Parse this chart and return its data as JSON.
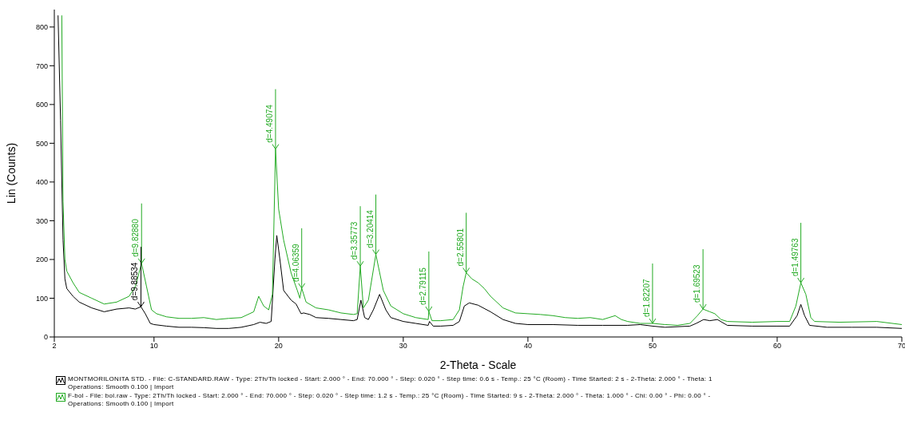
{
  "chart_data": {
    "type": "line",
    "xlabel": "2-Theta - Scale",
    "ylabel": "Lin (Counts)",
    "xlim": [
      2,
      70
    ],
    "xticks": [
      2,
      10,
      20,
      30,
      40,
      50,
      60,
      70
    ],
    "ylim": [
      0,
      845
    ],
    "yticks": [
      0,
      100,
      200,
      300,
      400,
      500,
      600,
      700,
      800
    ],
    "grid": false,
    "legend": "bottom",
    "marker": "none",
    "line_style": "solid",
    "series": [
      {
        "name": "MONTMORILONITA STD. - File: C-STANDARD.RAW - Type: 2Th/Th locked - Start: 2.000 ° - End: 70.000 ° - Step: 0.020 ° - Step time: 0.6 s - Temp.: 25 °C (Room) - Time Started: 2 s - 2-Theta: 2.000 ° - Theta: 1\nOperations: Smooth 0.100 | Import",
        "color": "#000000",
        "x": [
          2.3,
          2.5,
          2.7,
          2.85,
          3.0,
          3.5,
          4,
          5,
          6,
          7,
          8,
          8.5,
          8.95,
          9.3,
          9.7,
          10,
          11,
          12,
          13,
          14,
          15,
          16,
          17,
          18,
          18.5,
          19,
          19.4,
          19.7,
          19.85,
          20.1,
          20.4,
          21,
          21.4,
          21.8,
          22,
          22.5,
          23,
          24,
          25,
          26,
          26.3,
          26.6,
          26.9,
          27.2,
          27.6,
          28.1,
          28.6,
          29,
          30,
          31,
          32,
          32.1,
          32.4,
          33,
          34,
          34.5,
          34.9,
          35.3,
          36,
          37,
          38,
          39,
          40,
          42,
          44,
          46,
          48,
          49,
          50,
          51,
          53,
          53.5,
          54.1,
          54.6,
          55.2,
          56,
          58,
          60,
          61,
          61.6,
          61.9,
          62.2,
          62.6,
          64,
          66,
          68,
          70
        ],
        "values": [
          830,
          560,
          250,
          150,
          125,
          105,
          90,
          75,
          65,
          72,
          75,
          72,
          78,
          60,
          35,
          32,
          28,
          25,
          25,
          24,
          22,
          22,
          25,
          32,
          38,
          35,
          40,
          200,
          262,
          200,
          120,
          95,
          85,
          60,
          62,
          58,
          50,
          48,
          45,
          42,
          45,
          95,
          50,
          45,
          70,
          110,
          70,
          50,
          40,
          35,
          30,
          40,
          28,
          28,
          30,
          40,
          80,
          88,
          82,
          65,
          45,
          35,
          32,
          32,
          30,
          30,
          30,
          32,
          28,
          25,
          28,
          35,
          45,
          42,
          45,
          30,
          28,
          28,
          28,
          55,
          84,
          55,
          30,
          25,
          25,
          25,
          22
        ]
      },
      {
        "name": "F-bol - File: bol.raw - Type: 2Th/Th locked - Start: 2.000 ° - End: 70.000 ° - Step: 0.020 ° - Step time: 1.2 s - Temp.: 25 °C (Room) - Time Started: 9 s - 2-Theta: 2.000 ° - Theta: 1.000 ° - Chi: 0.00 ° - Phi: 0.00 ° -\nOperations: Smooth 0.100 | Import",
        "color": "#22aa22",
        "x": [
          2.6,
          2.7,
          2.85,
          3.0,
          3.5,
          4,
          5,
          6,
          7,
          8,
          8.5,
          9.0,
          9.4,
          9.8,
          10.2,
          11,
          12,
          13,
          14,
          15,
          16,
          17,
          18,
          18.4,
          18.8,
          19.2,
          19.5,
          19.75,
          20.0,
          20.4,
          21,
          21.5,
          21.7,
          21.85,
          22.2,
          23,
          24,
          25,
          26,
          26.3,
          26.55,
          26.8,
          27.2,
          27.8,
          28.4,
          29,
          30,
          31,
          32,
          32.05,
          32.3,
          33,
          34,
          34.5,
          34.8,
          35.05,
          35.5,
          36,
          36.5,
          37,
          38,
          39,
          40,
          41,
          42,
          43,
          44,
          45,
          46,
          47,
          47.5,
          48,
          49,
          50,
          51,
          52,
          53,
          53.6,
          54.05,
          54.6,
          55,
          55.5,
          56,
          58,
          60,
          61,
          61.5,
          61.9,
          62.3,
          62.7,
          63,
          65,
          68,
          70
        ],
        "values": [
          830,
          350,
          200,
          170,
          140,
          115,
          100,
          85,
          90,
          105,
          130,
          190,
          130,
          70,
          60,
          52,
          48,
          48,
          50,
          45,
          48,
          50,
          65,
          105,
          80,
          70,
          110,
          485,
          330,
          250,
          165,
          120,
          100,
          126,
          90,
          75,
          70,
          62,
          58,
          60,
          183,
          75,
          95,
          213,
          120,
          80,
          60,
          50,
          45,
          66,
          42,
          42,
          45,
          70,
          130,
          166,
          150,
          140,
          125,
          105,
          75,
          62,
          60,
          58,
          55,
          50,
          48,
          50,
          45,
          55,
          45,
          40,
          35,
          35,
          32,
          30,
          35,
          55,
          72,
          65,
          60,
          45,
          40,
          38,
          40,
          40,
          80,
          140,
          110,
          50,
          40,
          38,
          40,
          32
        ]
      }
    ],
    "annotations": [
      {
        "text": "d=9.82880",
        "x": 9.0,
        "y": 190
      },
      {
        "text": "d=9.88534",
        "x": 8.95,
        "y": 78
      },
      {
        "text": "d=4.49074",
        "x": 19.75,
        "y": 485
      },
      {
        "text": "d=4.06359",
        "x": 21.85,
        "y": 126
      },
      {
        "text": "d=3.35773",
        "x": 26.55,
        "y": 183
      },
      {
        "text": "d=3.20414",
        "x": 27.8,
        "y": 213
      },
      {
        "text": "d=2.79115",
        "x": 32.05,
        "y": 66
      },
      {
        "text": "d=2.55801",
        "x": 35.05,
        "y": 166
      },
      {
        "text": "d=1.82207",
        "x": 50.0,
        "y": 35
      },
      {
        "text": "d=1.69523",
        "x": 54.05,
        "y": 72
      },
      {
        "text": "d=1.49763",
        "x": 61.9,
        "y": 140
      }
    ]
  }
}
